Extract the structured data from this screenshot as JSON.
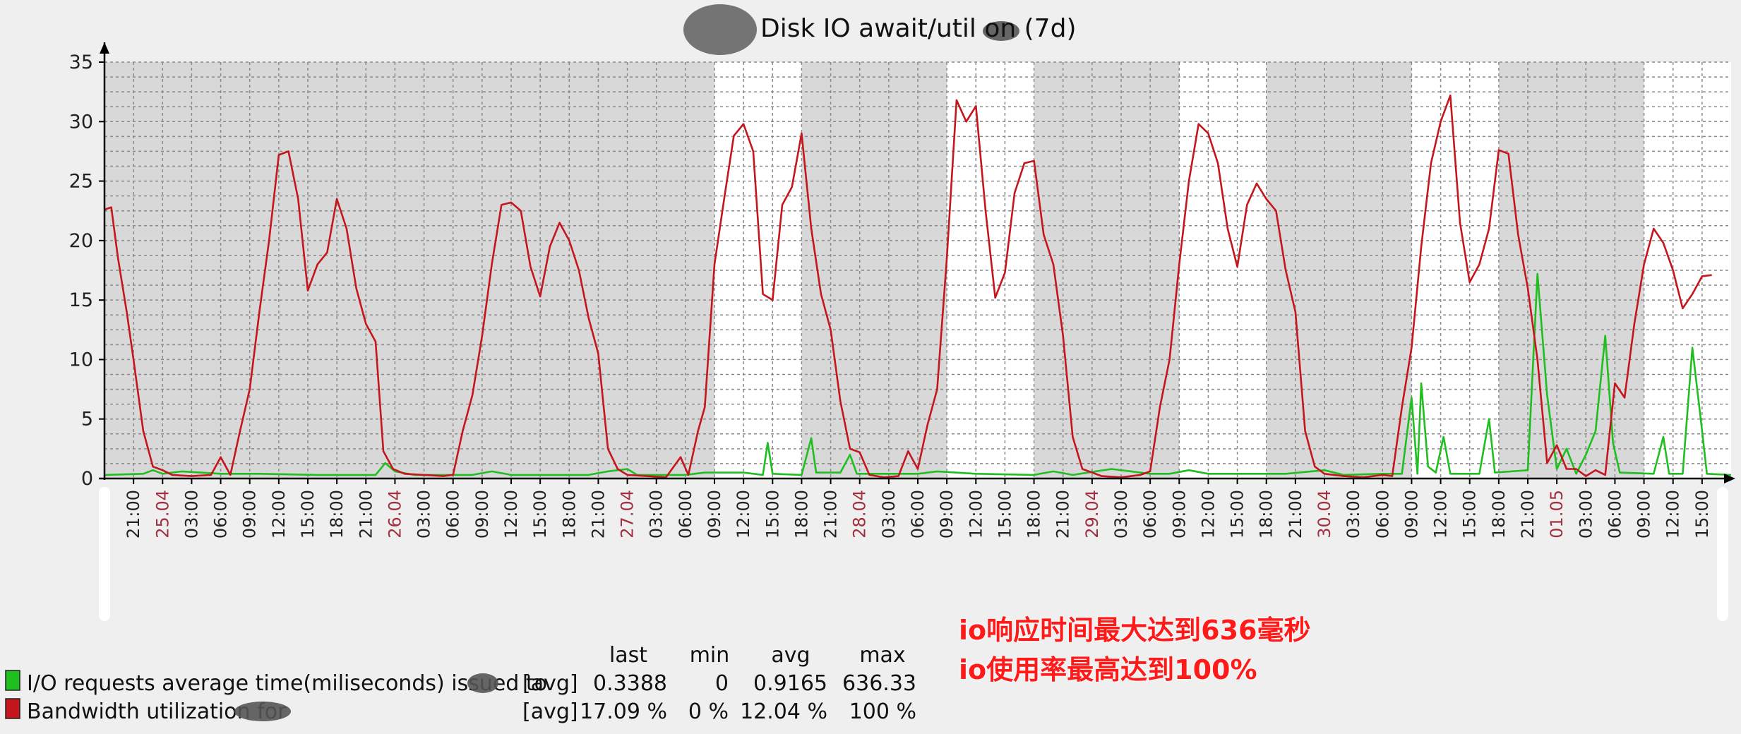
{
  "colors": {
    "background": "#efefef",
    "night_band": "#d8d8d8",
    "day_band": "#ffffff",
    "series_green": "#1fbf1f",
    "series_red": "#c4161c",
    "annotation": "#ff1a1a"
  },
  "chart_data": {
    "type": "line",
    "title": "Disk IO await/util on (7d)",
    "ylim": [
      0,
      35
    ],
    "yticks": [
      0,
      5,
      10,
      15,
      20,
      25,
      30,
      35
    ],
    "grid": true,
    "x_start_hour": 18,
    "x_end_hour": 186,
    "x_ticks": [
      {
        "label": "21:00",
        "h": 21,
        "day": false
      },
      {
        "label": "25.04",
        "h": 24,
        "day": true
      },
      {
        "label": "03:00",
        "h": 27,
        "day": false
      },
      {
        "label": "06:00",
        "h": 30,
        "day": false
      },
      {
        "label": "09:00",
        "h": 33,
        "day": false
      },
      {
        "label": "12:00",
        "h": 36,
        "day": false
      },
      {
        "label": "15:00",
        "h": 39,
        "day": false
      },
      {
        "label": "18:00",
        "h": 42,
        "day": false
      },
      {
        "label": "21:00",
        "h": 45,
        "day": false
      },
      {
        "label": "26.04",
        "h": 48,
        "day": true
      },
      {
        "label": "03:00",
        "h": 51,
        "day": false
      },
      {
        "label": "06:00",
        "h": 54,
        "day": false
      },
      {
        "label": "09:00",
        "h": 57,
        "day": false
      },
      {
        "label": "12:00",
        "h": 60,
        "day": false
      },
      {
        "label": "15:00",
        "h": 63,
        "day": false
      },
      {
        "label": "18:00",
        "h": 66,
        "day": false
      },
      {
        "label": "21:00",
        "h": 69,
        "day": false
      },
      {
        "label": "27.04",
        "h": 72,
        "day": true
      },
      {
        "label": "03:00",
        "h": 75,
        "day": false
      },
      {
        "label": "06:00",
        "h": 78,
        "day": false
      },
      {
        "label": "09:00",
        "h": 81,
        "day": false
      },
      {
        "label": "12:00",
        "h": 84,
        "day": false
      },
      {
        "label": "15:00",
        "h": 87,
        "day": false
      },
      {
        "label": "18:00",
        "h": 90,
        "day": false
      },
      {
        "label": "21:00",
        "h": 93,
        "day": false
      },
      {
        "label": "28.04",
        "h": 96,
        "day": true
      },
      {
        "label": "03:00",
        "h": 99,
        "day": false
      },
      {
        "label": "06:00",
        "h": 102,
        "day": false
      },
      {
        "label": "09:00",
        "h": 105,
        "day": false
      },
      {
        "label": "12:00",
        "h": 108,
        "day": false
      },
      {
        "label": "15:00",
        "h": 111,
        "day": false
      },
      {
        "label": "18:00",
        "h": 114,
        "day": false
      },
      {
        "label": "21:00",
        "h": 117,
        "day": false
      },
      {
        "label": "29.04",
        "h": 120,
        "day": true
      },
      {
        "label": "03:00",
        "h": 123,
        "day": false
      },
      {
        "label": "06:00",
        "h": 126,
        "day": false
      },
      {
        "label": "09:00",
        "h": 129,
        "day": false
      },
      {
        "label": "12:00",
        "h": 132,
        "day": false
      },
      {
        "label": "15:00",
        "h": 135,
        "day": false
      },
      {
        "label": "18:00",
        "h": 138,
        "day": false
      },
      {
        "label": "21:00",
        "h": 141,
        "day": false
      },
      {
        "label": "30.04",
        "h": 144,
        "day": true
      },
      {
        "label": "03:00",
        "h": 147,
        "day": false
      },
      {
        "label": "06:00",
        "h": 150,
        "day": false
      },
      {
        "label": "09:00",
        "h": 153,
        "day": false
      },
      {
        "label": "12:00",
        "h": 156,
        "day": false
      },
      {
        "label": "15:00",
        "h": 159,
        "day": false
      },
      {
        "label": "18:00",
        "h": 162,
        "day": false
      },
      {
        "label": "21:00",
        "h": 165,
        "day": false
      },
      {
        "label": "01.05",
        "h": 168,
        "day": true
      },
      {
        "label": "03:00",
        "h": 171,
        "day": false
      },
      {
        "label": "06:00",
        "h": 174,
        "day": false
      },
      {
        "label": "09:00",
        "h": 177,
        "day": false
      },
      {
        "label": "12:00",
        "h": 180,
        "day": false
      },
      {
        "label": "15:00",
        "h": 183,
        "day": false
      }
    ],
    "day_bands": [
      [
        81,
        90
      ],
      [
        105,
        114
      ],
      [
        129,
        138
      ],
      [
        153,
        162
      ],
      [
        177,
        186
      ]
    ],
    "series": [
      {
        "name": "I/O requests average time(miliseconds) issued to",
        "color": "#1fbf1f",
        "points": [
          [
            18,
            0.3
          ],
          [
            22,
            0.4
          ],
          [
            23,
            0.7
          ],
          [
            24,
            0.4
          ],
          [
            26,
            0.6
          ],
          [
            30,
            0.4
          ],
          [
            34,
            0.4
          ],
          [
            40,
            0.3
          ],
          [
            46,
            0.3
          ],
          [
            47,
            1.3
          ],
          [
            48,
            0.6
          ],
          [
            50,
            0.3
          ],
          [
            56,
            0.3
          ],
          [
            58,
            0.6
          ],
          [
            60,
            0.3
          ],
          [
            68,
            0.3
          ],
          [
            70,
            0.6
          ],
          [
            72,
            0.8
          ],
          [
            73,
            0.3
          ],
          [
            78,
            0.3
          ],
          [
            80,
            0.5
          ],
          [
            84,
            0.5
          ],
          [
            86,
            0.3
          ],
          [
            86.5,
            3.0
          ],
          [
            87,
            0.4
          ],
          [
            90,
            0.3
          ],
          [
            91,
            3.4
          ],
          [
            91.5,
            0.5
          ],
          [
            94,
            0.5
          ],
          [
            95,
            2.0
          ],
          [
            95.7,
            0.4
          ],
          [
            102,
            0.4
          ],
          [
            104,
            0.6
          ],
          [
            108,
            0.4
          ],
          [
            114,
            0.3
          ],
          [
            116,
            0.6
          ],
          [
            118,
            0.3
          ],
          [
            122,
            0.8
          ],
          [
            126,
            0.4
          ],
          [
            128,
            0.4
          ],
          [
            130,
            0.7
          ],
          [
            132,
            0.4
          ],
          [
            140,
            0.4
          ],
          [
            144,
            0.7
          ],
          [
            146,
            0.3
          ],
          [
            150,
            0.4
          ],
          [
            152,
            0.4
          ],
          [
            153,
            6.8
          ],
          [
            153.6,
            0.4
          ],
          [
            154,
            8.0
          ],
          [
            154.7,
            1.0
          ],
          [
            155.5,
            0.5
          ],
          [
            156.3,
            3.5
          ],
          [
            157,
            0.4
          ],
          [
            160,
            0.4
          ],
          [
            161,
            5.0
          ],
          [
            161.6,
            0.5
          ],
          [
            165,
            0.7
          ],
          [
            166,
            17.2
          ],
          [
            167,
            7.0
          ],
          [
            168,
            0.8
          ],
          [
            169,
            2.5
          ],
          [
            170,
            0.4
          ],
          [
            171,
            2.0
          ],
          [
            172,
            4.0
          ],
          [
            173,
            12.0
          ],
          [
            173.8,
            3.0
          ],
          [
            174.5,
            0.5
          ],
          [
            178,
            0.4
          ],
          [
            179,
            3.5
          ],
          [
            179.6,
            0.4
          ],
          [
            181,
            0.4
          ],
          [
            182,
            11.0
          ],
          [
            183,
            4.0
          ],
          [
            183.5,
            0.4
          ],
          [
            186,
            0.3
          ]
        ]
      },
      {
        "name": "Bandwidth utilization for",
        "color": "#c4161c",
        "points": [
          [
            18,
            22.6
          ],
          [
            18.7,
            22.8
          ],
          [
            19.4,
            18.5
          ],
          [
            20.3,
            14.0
          ],
          [
            21,
            10.0
          ],
          [
            22,
            4.0
          ],
          [
            23,
            1.0
          ],
          [
            24,
            0.7
          ],
          [
            25,
            0.3
          ],
          [
            27,
            0.2
          ],
          [
            29,
            0.3
          ],
          [
            30,
            1.8
          ],
          [
            31,
            0.3
          ],
          [
            32,
            4.0
          ],
          [
            33,
            7.5
          ],
          [
            34,
            14.0
          ],
          [
            35,
            20.0
          ],
          [
            36,
            27.2
          ],
          [
            37,
            27.5
          ],
          [
            38,
            23.5
          ],
          [
            39,
            15.8
          ],
          [
            40,
            18.0
          ],
          [
            41,
            19.0
          ],
          [
            42,
            23.5
          ],
          [
            43,
            21.0
          ],
          [
            44,
            16.0
          ],
          [
            45,
            13.0
          ],
          [
            46,
            11.5
          ],
          [
            46.8,
            2.3
          ],
          [
            47.8,
            0.8
          ],
          [
            49,
            0.4
          ],
          [
            51,
            0.3
          ],
          [
            53,
            0.2
          ],
          [
            54,
            0.3
          ],
          [
            55,
            4.0
          ],
          [
            56,
            7.0
          ],
          [
            57,
            12.0
          ],
          [
            58,
            18.0
          ],
          [
            59,
            23.0
          ],
          [
            60,
            23.2
          ],
          [
            61,
            22.5
          ],
          [
            62,
            17.8
          ],
          [
            63,
            15.3
          ],
          [
            64,
            19.5
          ],
          [
            65,
            21.5
          ],
          [
            66,
            20.0
          ],
          [
            67,
            17.5
          ],
          [
            68,
            13.5
          ],
          [
            69,
            10.5
          ],
          [
            70,
            2.5
          ],
          [
            71,
            0.8
          ],
          [
            72,
            0.3
          ],
          [
            74,
            0.2
          ],
          [
            76,
            0.1
          ],
          [
            77.5,
            1.8
          ],
          [
            78.3,
            0.3
          ],
          [
            79.3,
            4.0
          ],
          [
            80,
            6.0
          ],
          [
            81,
            18.0
          ],
          [
            82,
            23.5
          ],
          [
            83,
            28.8
          ],
          [
            84,
            29.8
          ],
          [
            85,
            27.5
          ],
          [
            86,
            15.5
          ],
          [
            87,
            15.0
          ],
          [
            88,
            23.0
          ],
          [
            89,
            24.5
          ],
          [
            90,
            29.0
          ],
          [
            91,
            21.0
          ],
          [
            92,
            15.5
          ],
          [
            93,
            12.5
          ],
          [
            94,
            6.5
          ],
          [
            95,
            2.5
          ],
          [
            96,
            2.2
          ],
          [
            97,
            0.3
          ],
          [
            98.5,
            0.1
          ],
          [
            100,
            0.2
          ],
          [
            101,
            2.3
          ],
          [
            102,
            0.8
          ],
          [
            103,
            4.5
          ],
          [
            104,
            7.5
          ],
          [
            105,
            18.5
          ],
          [
            106,
            31.8
          ],
          [
            107,
            30.0
          ],
          [
            108,
            31.3
          ],
          [
            109,
            22.5
          ],
          [
            110,
            15.2
          ],
          [
            111,
            17.3
          ],
          [
            112,
            24.0
          ],
          [
            113,
            26.5
          ],
          [
            114,
            26.7
          ],
          [
            115,
            20.5
          ],
          [
            116,
            18.0
          ],
          [
            117,
            12.0
          ],
          [
            118,
            3.5
          ],
          [
            119,
            0.8
          ],
          [
            121,
            0.2
          ],
          [
            123,
            0.1
          ],
          [
            125,
            0.3
          ],
          [
            126,
            0.6
          ],
          [
            127,
            6.0
          ],
          [
            128,
            10.0
          ],
          [
            129,
            18.0
          ],
          [
            130,
            25.0
          ],
          [
            131,
            29.8
          ],
          [
            132,
            29.0
          ],
          [
            133,
            26.5
          ],
          [
            134,
            21.0
          ],
          [
            135,
            17.8
          ],
          [
            136,
            23.0
          ],
          [
            137,
            24.8
          ],
          [
            138,
            23.5
          ],
          [
            139,
            22.5
          ],
          [
            140,
            17.5
          ],
          [
            141,
            14.0
          ],
          [
            142,
            4.0
          ],
          [
            143,
            1.0
          ],
          [
            144,
            0.4
          ],
          [
            146,
            0.2
          ],
          [
            148,
            0.1
          ],
          [
            150,
            0.3
          ],
          [
            151,
            0.2
          ],
          [
            152,
            6.0
          ],
          [
            153,
            11.0
          ],
          [
            154,
            19.5
          ],
          [
            155,
            26.5
          ],
          [
            156,
            30.0
          ],
          [
            157,
            32.2
          ],
          [
            158,
            21.5
          ],
          [
            159,
            16.5
          ],
          [
            160,
            18.0
          ],
          [
            161,
            21.0
          ],
          [
            162,
            27.6
          ],
          [
            163,
            27.3
          ],
          [
            164,
            20.5
          ],
          [
            165,
            16.0
          ],
          [
            166,
            10.0
          ],
          [
            167,
            1.3
          ],
          [
            168,
            2.8
          ],
          [
            169,
            0.8
          ],
          [
            170,
            0.8
          ],
          [
            171,
            0.2
          ],
          [
            172,
            0.7
          ],
          [
            173,
            0.3
          ],
          [
            174,
            8.0
          ],
          [
            175,
            6.8
          ],
          [
            176,
            13.0
          ],
          [
            177,
            18.0
          ],
          [
            178,
            21.0
          ],
          [
            179,
            19.8
          ],
          [
            180,
            17.5
          ],
          [
            181,
            14.3
          ],
          [
            182,
            15.5
          ],
          [
            183,
            17.0
          ],
          [
            184,
            17.1
          ]
        ]
      }
    ]
  },
  "legend": {
    "headers": {
      "last": "last",
      "min": "min",
      "avg": "avg",
      "max": "max"
    },
    "rows": [
      {
        "label": "I/O requests average time(miliseconds) issued to",
        "func": "[avg]",
        "last": "0.3388",
        "min": "0",
        "avg": "0.9165",
        "max": "636.33",
        "color": "#1fbf1f"
      },
      {
        "label": "Bandwidth utilization for",
        "func": "[avg]",
        "last": "17.09 %",
        "min": "0 %",
        "avg": "12.04 %",
        "max": "100 %",
        "color": "#c4161c"
      }
    ]
  },
  "annotations": {
    "line1": "io响应时间最大达到636毫秒",
    "line2": "io使用率最高达到100%"
  }
}
